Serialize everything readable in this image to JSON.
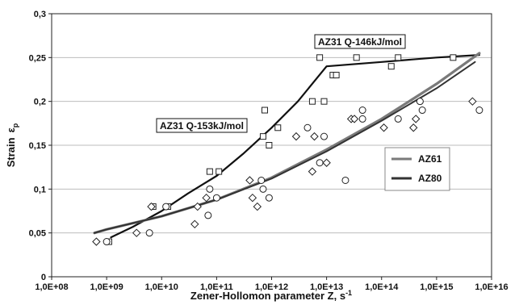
{
  "chart_data": {
    "type": "scatter",
    "xlabel": "Zener-Hollomon parameter Z, s",
    "xlabel_sup": "-1",
    "ylabel": "Strain",
    "ylabel_symbol": "ε",
    "ylabel_sub": "p",
    "x_scale": "log",
    "xlim": [
      100000000,
      10000000000000000
    ],
    "ylim": [
      0,
      0.3
    ],
    "grid": "horizontal",
    "x_tick_labels": [
      "1,0E+08",
      "1,0E+09",
      "1,0E+10",
      "1,0E+11",
      "1,0E+12",
      "1,0E+13",
      "1,0E+14",
      "1,0E+15",
      "1,0E+16"
    ],
    "y_tick_labels": [
      "0",
      "0,05",
      "0,1",
      "0,15",
      "0,2",
      "0,25",
      "0,3"
    ],
    "legend": {
      "placement": "right",
      "entries": [
        {
          "label": "AZ61",
          "color": "#7a7a7a"
        },
        {
          "label": "AZ80",
          "color": "#333333"
        }
      ]
    },
    "annotations": [
      {
        "text": "AZ31 Q-146kJ/mol"
      },
      {
        "text": "AZ31 Q-153kJ/mol"
      }
    ],
    "scatter_series": [
      {
        "marker": "square",
        "points": [
          [
            1100000000.0,
            0.04
          ],
          [
            7000000000.0,
            0.08
          ],
          [
            13000000000.0,
            0.08
          ],
          [
            75000000000.0,
            0.12
          ],
          [
            110000000000.0,
            0.12
          ],
          [
            700000000000.0,
            0.16
          ],
          [
            750000000000.0,
            0.19
          ],
          [
            900000000000.0,
            0.15
          ],
          [
            1300000000000.0,
            0.17
          ],
          [
            5500000000000.0,
            0.2
          ],
          [
            7500000000000.0,
            0.25
          ],
          [
            9000000000000.0,
            0.2
          ],
          [
            13000000000000.0,
            0.23
          ],
          [
            15000000000000.0,
            0.23
          ],
          [
            35000000000000.0,
            0.25
          ],
          [
            150000000000000.0,
            0.24
          ],
          [
            200000000000000.0,
            0.25
          ],
          [
            2000000000000000.0,
            0.25
          ]
        ]
      },
      {
        "marker": "circle",
        "points": [
          [
            1000000000.0,
            0.04
          ],
          [
            6000000000.0,
            0.05
          ],
          [
            12000000000.0,
            0.08
          ],
          [
            70000000000.0,
            0.07
          ],
          [
            75000000000.0,
            0.1
          ],
          [
            100000000000.0,
            0.09
          ],
          [
            650000000000.0,
            0.11
          ],
          [
            700000000000.0,
            0.1
          ],
          [
            900000000000.0,
            0.09
          ],
          [
            4500000000000.0,
            0.17
          ],
          [
            7500000000000.0,
            0.13
          ],
          [
            9000000000000.0,
            0.16
          ],
          [
            22000000000000.0,
            0.11
          ],
          [
            45000000000000.0,
            0.19
          ],
          [
            45000000000000.0,
            0.18
          ],
          [
            200000000000000.0,
            0.18
          ],
          [
            500000000000000.0,
            0.2
          ],
          [
            550000000000000.0,
            0.19
          ],
          [
            6000000000000000.0,
            0.19
          ]
        ]
      },
      {
        "marker": "diamond",
        "points": [
          [
            650000000.0,
            0.04
          ],
          [
            3500000000.0,
            0.05
          ],
          [
            6500000000.0,
            0.08
          ],
          [
            40000000000.0,
            0.06
          ],
          [
            45000000000.0,
            0.08
          ],
          [
            65000000000.0,
            0.09
          ],
          [
            400000000000.0,
            0.11
          ],
          [
            450000000000.0,
            0.09
          ],
          [
            550000000000.0,
            0.08
          ],
          [
            2800000000000.0,
            0.16
          ],
          [
            5500000000000.0,
            0.12
          ],
          [
            6000000000000.0,
            0.16
          ],
          [
            10000000000000.0,
            0.13
          ],
          [
            28000000000000.0,
            0.18
          ],
          [
            32000000000000.0,
            0.18
          ],
          [
            110000000000000.0,
            0.17
          ],
          [
            380000000000000.0,
            0.17
          ],
          [
            420000000000000.0,
            0.18
          ],
          [
            4500000000000000.0,
            0.2
          ]
        ]
      }
    ],
    "line_series": [
      {
        "color": "#111111",
        "width": 2.2,
        "points": [
          [
            1200000000.0,
            0.045
          ],
          [
            3000000000.0,
            0.057
          ],
          [
            10000000000.0,
            0.075
          ],
          [
            30000000000.0,
            0.095
          ],
          [
            100000000000.0,
            0.115
          ],
          [
            300000000000.0,
            0.14
          ],
          [
            1000000000000.0,
            0.17
          ],
          [
            3000000000000.0,
            0.2
          ],
          [
            10000000000000.0,
            0.24
          ],
          [
            100000000000000.0,
            0.245
          ],
          [
            1000000000000000.0,
            0.25
          ],
          [
            6000000000000000.0,
            0.253
          ]
        ]
      },
      {
        "color": "#7a7a7a",
        "width": 3.2,
        "points": [
          [
            600000000.0,
            0.05
          ],
          [
            1000000000.0,
            0.054
          ],
          [
            10000000000.0,
            0.069
          ],
          [
            100000000000.0,
            0.088
          ],
          [
            1000000000000.0,
            0.113
          ],
          [
            10000000000000.0,
            0.145
          ],
          [
            100000000000000.0,
            0.18
          ],
          [
            1000000000000000.0,
            0.22
          ],
          [
            6000000000000000.0,
            0.255
          ]
        ]
      },
      {
        "color": "#333333",
        "width": 2,
        "points": [
          [
            600000000.0,
            0.05
          ],
          [
            1000000000.0,
            0.054
          ],
          [
            10000000000.0,
            0.069
          ],
          [
            100000000000.0,
            0.088
          ],
          [
            1000000000000.0,
            0.112
          ],
          [
            10000000000000.0,
            0.143
          ],
          [
            100000000000000.0,
            0.178
          ],
          [
            1000000000000000.0,
            0.215
          ],
          [
            5000000000000000.0,
            0.245
          ]
        ]
      }
    ]
  }
}
